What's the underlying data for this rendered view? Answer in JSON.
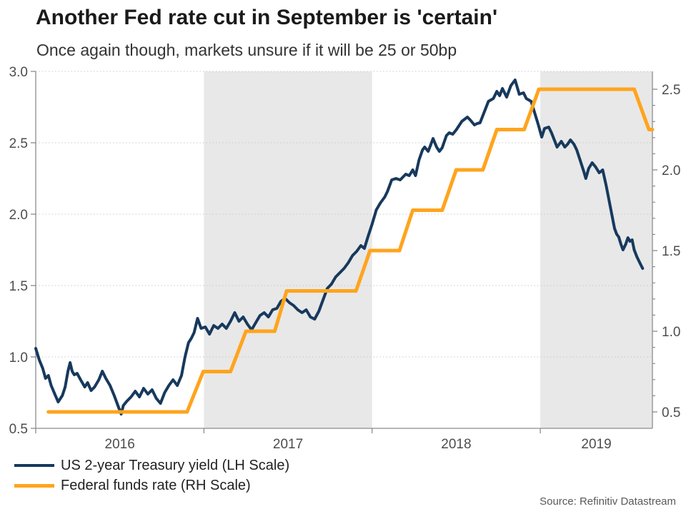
{
  "header": {
    "title": "Another Fed rate cut in September is 'certain'",
    "subtitle": "Once again though, markets unsure if it will be 25 or 50bp"
  },
  "footer": {
    "source": "Source: Refinitiv Datastream"
  },
  "legend": {
    "items": [
      {
        "label": "US 2-year Treasury yield (LH Scale)",
        "color": "#17395d",
        "thickness": 4
      },
      {
        "label": "Federal funds rate (RH Scale)",
        "color": "#ffa41d",
        "thickness": 5
      }
    ]
  },
  "chart_data": {
    "type": "line",
    "title": "Another Fed rate cut in September is 'certain'",
    "subtitle": "Once again though, markets unsure if it will be 25 or 50bp",
    "xlabel": "",
    "ylabel_left": "",
    "ylabel_right": "",
    "x_unit": "months since Jan 2016",
    "x_range": [
      0,
      44
    ],
    "x_ticks": [
      {
        "label": "2016",
        "tick_t": 0,
        "label_t": 6
      },
      {
        "label": "2017",
        "tick_t": 12,
        "label_t": 18
      },
      {
        "label": "2018",
        "tick_t": 24,
        "label_t": 30
      },
      {
        "label": "2019",
        "tick_t": 36,
        "label_t": 40
      }
    ],
    "shaded_bands": [
      [
        12,
        24
      ],
      [
        36,
        44
      ]
    ],
    "grid": "horizontal-dotted",
    "legend_position": "bottom-left",
    "left_axis": {
      "range": [
        0.5,
        3.0
      ],
      "tick_labels": [
        "0.5",
        "1.0",
        "1.5",
        "2.0",
        "2.5",
        "3.0"
      ],
      "tick_values": [
        0.5,
        1.0,
        1.5,
        2.0,
        2.5,
        3.0
      ],
      "grid_values": [
        1.0,
        1.5,
        2.0,
        2.5,
        3.0
      ]
    },
    "right_axis": {
      "range": [
        0.5,
        2.5
      ],
      "tick_labels": [
        "0.5",
        "1.0",
        "1.5",
        "2.0",
        "2.5"
      ],
      "tick_values": [
        0.5,
        1.0,
        1.5,
        2.0,
        2.5
      ],
      "minor_tick_step": 0.1
    },
    "colors": {
      "band": "#e8e8e8",
      "grid": "#c9c9c9",
      "axis": "#8c8c8c",
      "tick_text": "#4d4d4d",
      "treasury": "#17395d",
      "fedfunds": "#ffa41d"
    },
    "series": [
      {
        "name": "US 2-year Treasury yield (LH Scale)",
        "axis": "left",
        "color": "#17395d",
        "width": 4,
        "points": [
          [
            0,
            1.06
          ],
          [
            0.25,
            0.98
          ],
          [
            0.5,
            0.92
          ],
          [
            0.7,
            0.85
          ],
          [
            0.9,
            0.87
          ],
          [
            1.1,
            0.8
          ],
          [
            1.4,
            0.73
          ],
          [
            1.6,
            0.685
          ],
          [
            1.9,
            0.73
          ],
          [
            2.1,
            0.79
          ],
          [
            2.3,
            0.9
          ],
          [
            2.45,
            0.96
          ],
          [
            2.6,
            0.9
          ],
          [
            2.75,
            0.875
          ],
          [
            2.95,
            0.885
          ],
          [
            3.2,
            0.84
          ],
          [
            3.5,
            0.79
          ],
          [
            3.7,
            0.82
          ],
          [
            3.95,
            0.765
          ],
          [
            4.2,
            0.79
          ],
          [
            4.5,
            0.84
          ],
          [
            4.75,
            0.9
          ],
          [
            5.0,
            0.85
          ],
          [
            5.3,
            0.8
          ],
          [
            5.6,
            0.73
          ],
          [
            5.9,
            0.65
          ],
          [
            6.1,
            0.6
          ],
          [
            6.25,
            0.66
          ],
          [
            6.5,
            0.69
          ],
          [
            6.8,
            0.72
          ],
          [
            7.1,
            0.76
          ],
          [
            7.4,
            0.72
          ],
          [
            7.7,
            0.78
          ],
          [
            8.0,
            0.74
          ],
          [
            8.3,
            0.77
          ],
          [
            8.6,
            0.71
          ],
          [
            8.9,
            0.675
          ],
          [
            9.2,
            0.75
          ],
          [
            9.5,
            0.8
          ],
          [
            9.8,
            0.84
          ],
          [
            10.1,
            0.8
          ],
          [
            10.4,
            0.87
          ],
          [
            10.65,
            1.0
          ],
          [
            10.9,
            1.1
          ],
          [
            11.1,
            1.13
          ],
          [
            11.3,
            1.17
          ],
          [
            11.55,
            1.27
          ],
          [
            11.8,
            1.2
          ],
          [
            12.1,
            1.21
          ],
          [
            12.4,
            1.16
          ],
          [
            12.7,
            1.22
          ],
          [
            13.0,
            1.2
          ],
          [
            13.3,
            1.23
          ],
          [
            13.6,
            1.2
          ],
          [
            13.9,
            1.25
          ],
          [
            14.2,
            1.31
          ],
          [
            14.5,
            1.25
          ],
          [
            14.8,
            1.28
          ],
          [
            15.1,
            1.23
          ],
          [
            15.4,
            1.19
          ],
          [
            15.7,
            1.24
          ],
          [
            16.0,
            1.29
          ],
          [
            16.3,
            1.31
          ],
          [
            16.6,
            1.28
          ],
          [
            16.9,
            1.33
          ],
          [
            17.2,
            1.34
          ],
          [
            17.5,
            1.39
          ],
          [
            17.8,
            1.41
          ],
          [
            18.1,
            1.38
          ],
          [
            18.4,
            1.36
          ],
          [
            18.7,
            1.33
          ],
          [
            19.0,
            1.31
          ],
          [
            19.3,
            1.33
          ],
          [
            19.6,
            1.28
          ],
          [
            19.9,
            1.265
          ],
          [
            20.2,
            1.32
          ],
          [
            20.5,
            1.4
          ],
          [
            20.8,
            1.48
          ],
          [
            21.1,
            1.51
          ],
          [
            21.4,
            1.56
          ],
          [
            21.7,
            1.59
          ],
          [
            22.0,
            1.62
          ],
          [
            22.3,
            1.66
          ],
          [
            22.6,
            1.71
          ],
          [
            22.9,
            1.74
          ],
          [
            23.2,
            1.78
          ],
          [
            23.45,
            1.76
          ],
          [
            23.7,
            1.84
          ],
          [
            24.0,
            1.93
          ],
          [
            24.3,
            2.03
          ],
          [
            24.6,
            2.08
          ],
          [
            24.9,
            2.12
          ],
          [
            25.1,
            2.16
          ],
          [
            25.4,
            2.24
          ],
          [
            25.7,
            2.25
          ],
          [
            26.0,
            2.24
          ],
          [
            26.2,
            2.26
          ],
          [
            26.4,
            2.28
          ],
          [
            26.65,
            2.27
          ],
          [
            26.9,
            2.31
          ],
          [
            27.1,
            2.27
          ],
          [
            27.35,
            2.38
          ],
          [
            27.6,
            2.45
          ],
          [
            27.75,
            2.47
          ],
          [
            28.0,
            2.44
          ],
          [
            28.2,
            2.49
          ],
          [
            28.35,
            2.53
          ],
          [
            28.6,
            2.47
          ],
          [
            28.8,
            2.44
          ],
          [
            29.0,
            2.465
          ],
          [
            29.3,
            2.55
          ],
          [
            29.5,
            2.57
          ],
          [
            29.75,
            2.56
          ],
          [
            30.0,
            2.59
          ],
          [
            30.4,
            2.65
          ],
          [
            30.8,
            2.68
          ],
          [
            31.0,
            2.66
          ],
          [
            31.3,
            2.625
          ],
          [
            31.5,
            2.635
          ],
          [
            31.7,
            2.64
          ],
          [
            32.3,
            2.79
          ],
          [
            32.65,
            2.81
          ],
          [
            32.9,
            2.86
          ],
          [
            33.1,
            2.83
          ],
          [
            33.3,
            2.88
          ],
          [
            33.6,
            2.82
          ],
          [
            33.9,
            2.9
          ],
          [
            34.2,
            2.94
          ],
          [
            34.5,
            2.84
          ],
          [
            34.8,
            2.85
          ],
          [
            35.0,
            2.81
          ],
          [
            35.35,
            2.79
          ],
          [
            35.6,
            2.71
          ],
          [
            35.85,
            2.63
          ],
          [
            36.1,
            2.54
          ],
          [
            36.3,
            2.6
          ],
          [
            36.6,
            2.61
          ],
          [
            36.8,
            2.57
          ],
          [
            37.0,
            2.52
          ],
          [
            37.2,
            2.47
          ],
          [
            37.5,
            2.51
          ],
          [
            37.75,
            2.47
          ],
          [
            37.95,
            2.49
          ],
          [
            38.15,
            2.52
          ],
          [
            38.4,
            2.49
          ],
          [
            38.6,
            2.45
          ],
          [
            38.9,
            2.36
          ],
          [
            39.1,
            2.3
          ],
          [
            39.25,
            2.25
          ],
          [
            39.45,
            2.32
          ],
          [
            39.7,
            2.36
          ],
          [
            39.95,
            2.33
          ],
          [
            40.2,
            2.29
          ],
          [
            40.45,
            2.31
          ],
          [
            40.7,
            2.2
          ],
          [
            40.9,
            2.1
          ],
          [
            41.1,
            2.0
          ],
          [
            41.3,
            1.9
          ],
          [
            41.45,
            1.86
          ],
          [
            41.6,
            1.84
          ],
          [
            41.75,
            1.79
          ],
          [
            41.9,
            1.75
          ],
          [
            42.1,
            1.79
          ],
          [
            42.25,
            1.835
          ],
          [
            42.4,
            1.81
          ],
          [
            42.55,
            1.82
          ],
          [
            42.7,
            1.75
          ],
          [
            42.9,
            1.7
          ],
          [
            43.1,
            1.66
          ],
          [
            43.3,
            1.62
          ]
        ]
      },
      {
        "name": "Federal funds rate (RH Scale)",
        "axis": "right",
        "color": "#ffa41d",
        "width": 5,
        "points": [
          [
            0.9,
            0.5
          ],
          [
            10.8,
            0.5
          ],
          [
            11.95,
            0.75
          ],
          [
            13.9,
            0.75
          ],
          [
            15.0,
            1.0
          ],
          [
            17.05,
            1.0
          ],
          [
            17.9,
            1.25
          ],
          [
            22.85,
            1.25
          ],
          [
            23.85,
            1.5
          ],
          [
            25.95,
            1.5
          ],
          [
            26.9,
            1.75
          ],
          [
            29.0,
            1.75
          ],
          [
            30.0,
            2.0
          ],
          [
            31.9,
            2.0
          ],
          [
            32.9,
            2.25
          ],
          [
            34.85,
            2.25
          ],
          [
            35.9,
            2.5
          ],
          [
            42.7,
            2.5
          ],
          [
            43.75,
            2.25
          ],
          [
            44,
            2.25
          ]
        ]
      }
    ]
  }
}
